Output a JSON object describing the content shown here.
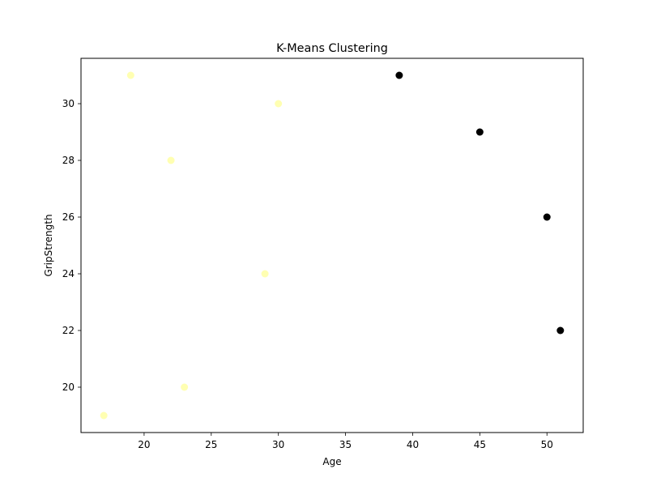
{
  "chart_data": {
    "type": "scatter",
    "title": "K-Means Clustering",
    "xlabel": "Age",
    "ylabel": "GripStrength",
    "xlim": [
      15.3,
      52.7
    ],
    "ylim": [
      18.4,
      31.6
    ],
    "xticks": [
      20,
      25,
      30,
      35,
      40,
      45,
      50
    ],
    "yticks": [
      20,
      22,
      24,
      26,
      28,
      30
    ],
    "grid": false,
    "legend": "none",
    "clusters": [
      {
        "color": "#ffffb2",
        "points": [
          {
            "x": 19,
            "y": 31
          },
          {
            "x": 30,
            "y": 30
          },
          {
            "x": 22,
            "y": 28
          },
          {
            "x": 29,
            "y": 24
          },
          {
            "x": 23,
            "y": 20
          },
          {
            "x": 17,
            "y": 19
          }
        ]
      },
      {
        "color": "#000000",
        "points": [
          {
            "x": 39,
            "y": 31
          },
          {
            "x": 45,
            "y": 29
          },
          {
            "x": 50,
            "y": 26
          },
          {
            "x": 51,
            "y": 22
          }
        ]
      }
    ]
  }
}
